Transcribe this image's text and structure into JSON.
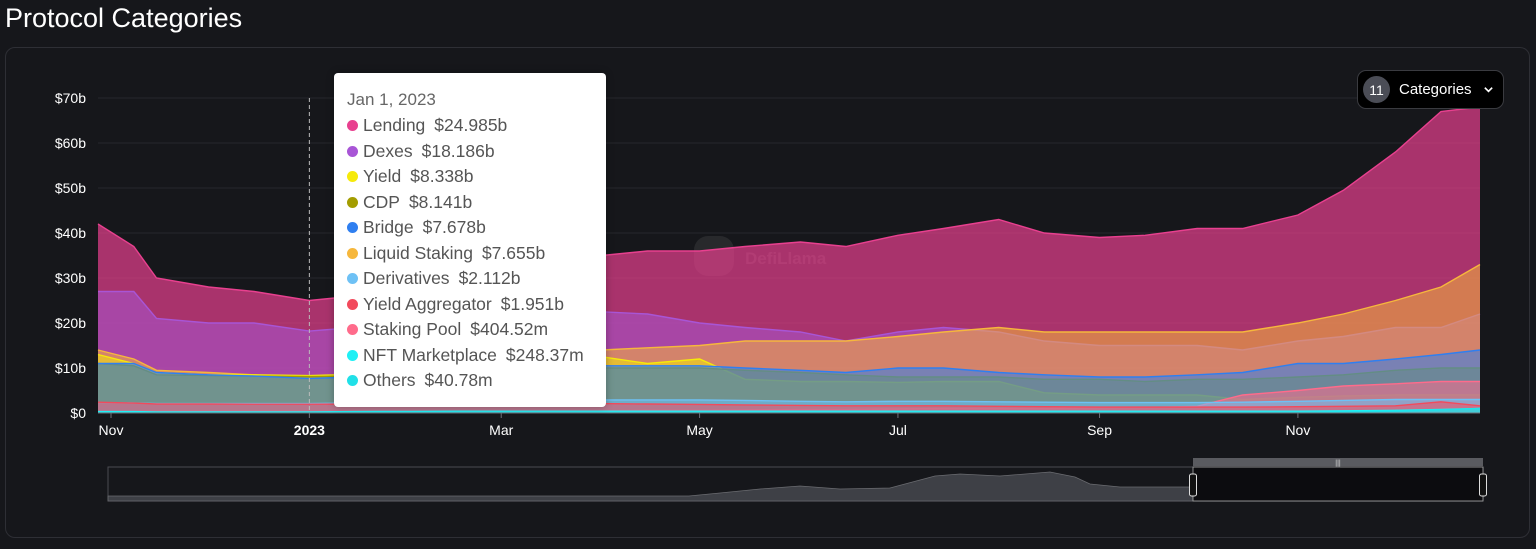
{
  "page_title": "Protocol Categories",
  "categories_button": {
    "count": "11",
    "label": "Categories",
    "icon": "chevron-down-icon"
  },
  "watermark": "DefiLlama",
  "tooltip": {
    "date": "Jan 1, 2023",
    "rows": [
      {
        "name": "Lending",
        "value": "$24.985b",
        "color": "#e8408f"
      },
      {
        "name": "Dexes",
        "value": "$18.186b",
        "color": "#a855d6"
      },
      {
        "name": "Yield",
        "value": "$8.338b",
        "color": "#f6ea0a"
      },
      {
        "name": "CDP",
        "value": "$8.141b",
        "color": "#a39d00"
      },
      {
        "name": "Bridge",
        "value": "$7.678b",
        "color": "#2f7ff0"
      },
      {
        "name": "Liquid Staking",
        "value": "$7.655b",
        "color": "#f6b73c"
      },
      {
        "name": "Derivatives",
        "value": "$2.112b",
        "color": "#6ec1f5"
      },
      {
        "name": "Yield Aggregator",
        "value": "$1.951b",
        "color": "#f24a5c"
      },
      {
        "name": "Staking Pool",
        "value": "$404.52m",
        "color": "#ff6b8b"
      },
      {
        "name": "NFT Marketplace",
        "value": "$248.37m",
        "color": "#1ff0f5"
      },
      {
        "name": "Others",
        "value": "$40.78m",
        "color": "#20e0e8"
      }
    ]
  },
  "chart_data": {
    "type": "area",
    "title": "Protocol Categories",
    "xlabel": "",
    "ylabel": "",
    "ylim": [
      0,
      70
    ],
    "y_unit": "billion USD",
    "xlim": [
      "2022-10-28",
      "2023-12-27"
    ],
    "y_ticks": [
      "$0",
      "$10b",
      "$20b",
      "$30b",
      "$40b",
      "$50b",
      "$60b",
      "$70b"
    ],
    "x_ticks": [
      {
        "date": "2022-11-01",
        "label": "Nov",
        "bold": false
      },
      {
        "date": "2023-01-01",
        "label": "2023",
        "bold": true
      },
      {
        "date": "2023-03-01",
        "label": "Mar",
        "bold": false
      },
      {
        "date": "2023-05-01",
        "label": "May",
        "bold": false
      },
      {
        "date": "2023-07-01",
        "label": "Jul",
        "bold": false
      },
      {
        "date": "2023-09-01",
        "label": "Sep",
        "bold": false
      },
      {
        "date": "2023-11-01",
        "label": "Nov",
        "bold": false
      }
    ],
    "grid": true,
    "hover_date": "2023-01-01",
    "dates": [
      "2022-10-28",
      "2022-11-08",
      "2022-11-15",
      "2022-12-01",
      "2022-12-15",
      "2023-01-01",
      "2023-01-15",
      "2023-02-01",
      "2023-02-15",
      "2023-03-01",
      "2023-03-15",
      "2023-04-01",
      "2023-04-15",
      "2023-05-01",
      "2023-05-15",
      "2023-06-01",
      "2023-06-15",
      "2023-07-01",
      "2023-07-15",
      "2023-08-01",
      "2023-08-15",
      "2023-09-01",
      "2023-09-15",
      "2023-10-01",
      "2023-10-15",
      "2023-11-01",
      "2023-11-15",
      "2023-12-01",
      "2023-12-15",
      "2023-12-27"
    ],
    "series": [
      {
        "name": "Lending",
        "color": "#e8408f",
        "values": [
          42,
          37,
          30,
          28,
          27,
          25,
          26,
          29,
          31,
          33,
          34,
          35,
          36,
          36,
          37,
          38,
          37,
          39.5,
          41,
          43,
          40,
          39,
          39.5,
          41,
          41,
          44,
          49.5,
          58,
          67,
          68
        ]
      },
      {
        "name": "Dexes",
        "color": "#a855d6",
        "values": [
          27,
          27,
          21,
          20,
          20,
          18.2,
          19,
          20,
          21,
          22,
          22,
          22.5,
          22,
          20,
          19,
          18,
          16,
          18,
          19,
          18,
          16,
          15,
          15,
          15,
          14,
          16,
          17,
          19,
          19,
          22
        ]
      },
      {
        "name": "Liquid Staking",
        "color": "#f6b73c",
        "values": [
          14,
          12,
          9.5,
          9,
          8.5,
          7.7,
          8,
          9.5,
          11,
          12,
          13,
          14,
          14.5,
          15,
          16,
          16,
          16,
          17,
          18,
          19,
          18,
          18,
          18,
          18,
          18,
          20,
          22,
          25,
          28,
          33
        ]
      },
      {
        "name": "Yield",
        "color": "#f6ea0a",
        "values": [
          13,
          11,
          9,
          8.5,
          8.5,
          8.3,
          8.6,
          9,
          10,
          12,
          12.5,
          12.5,
          11,
          12,
          7.5,
          7,
          7,
          6.8,
          7,
          7,
          4.5,
          4,
          4,
          4,
          3,
          3.5,
          3.8,
          4,
          4,
          4
        ]
      },
      {
        "name": "CDP",
        "color": "#a39d00",
        "values": [
          11,
          10.5,
          8.5,
          8.3,
          8.2,
          8.1,
          8.2,
          8.6,
          9,
          9.6,
          10,
          10,
          10,
          10,
          9.5,
          9,
          8.5,
          8,
          8,
          8,
          7.5,
          7.5,
          7,
          7.5,
          7.5,
          8,
          8.5,
          9.5,
          10,
          10
        ]
      },
      {
        "name": "Bridge",
        "color": "#2f7ff0",
        "values": [
          11,
          11,
          9,
          8.5,
          8.2,
          7.7,
          8,
          8.6,
          9,
          10,
          10,
          10.5,
          10.5,
          10.5,
          10,
          9.5,
          9,
          10,
          10,
          9,
          8.5,
          8,
          8,
          8.5,
          9,
          11,
          11,
          12,
          13,
          14
        ]
      },
      {
        "name": "Staking Pool",
        "color": "#ff6b8b",
        "values": [
          0.4,
          0.4,
          0.4,
          0.4,
          0.4,
          0.4,
          0.4,
          0.4,
          0.4,
          0.5,
          0.5,
          0.5,
          0.6,
          0.6,
          0.7,
          0.8,
          0.8,
          0.9,
          1,
          1,
          1,
          1.2,
          1.2,
          1.5,
          4,
          5,
          6,
          6.5,
          7,
          7
        ]
      },
      {
        "name": "Derivatives",
        "color": "#6ec1f5",
        "values": [
          2.3,
          2.2,
          2.1,
          2.1,
          2.1,
          2.1,
          2.2,
          2.4,
          2.6,
          2.8,
          2.8,
          2.9,
          2.9,
          2.9,
          2.8,
          2.6,
          2.5,
          2.6,
          2.6,
          2.5,
          2.4,
          2.3,
          2.3,
          2.3,
          2.4,
          2.6,
          2.8,
          3,
          3,
          3
        ]
      },
      {
        "name": "Yield Aggregator",
        "color": "#f24a5c",
        "values": [
          2.4,
          2.2,
          2,
          2,
          1.95,
          1.95,
          2,
          2,
          2,
          2.1,
          2.1,
          2.1,
          2,
          1.9,
          1.8,
          1.7,
          1.6,
          1.6,
          1.6,
          1.5,
          1.4,
          1.3,
          1.3,
          1.3,
          1.3,
          1.4,
          1.5,
          1.6,
          2.5,
          1.6
        ]
      },
      {
        "name": "NFT Marketplace",
        "color": "#1ff0f5",
        "values": [
          0.3,
          0.3,
          0.25,
          0.25,
          0.25,
          0.25,
          0.3,
          0.35,
          0.4,
          0.4,
          0.4,
          0.4,
          0.4,
          0.4,
          0.4,
          0.4,
          0.4,
          0.4,
          0.4,
          0.4,
          0.4,
          0.4,
          0.4,
          0.4,
          0.4,
          0.4,
          0.5,
          0.6,
          0.8,
          1
        ]
      },
      {
        "name": "Others",
        "color": "#20e0e8",
        "values": [
          0.04,
          0.04,
          0.04,
          0.04,
          0.04,
          0.04,
          0.05,
          0.05,
          0.05,
          0.05,
          0.05,
          0.06,
          0.06,
          0.06,
          0.06,
          0.06,
          0.06,
          0.06,
          0.06,
          0.06,
          0.06,
          0.06,
          0.06,
          0.06,
          0.06,
          0.1,
          0.2,
          0.4,
          0.7,
          1
        ]
      }
    ]
  }
}
